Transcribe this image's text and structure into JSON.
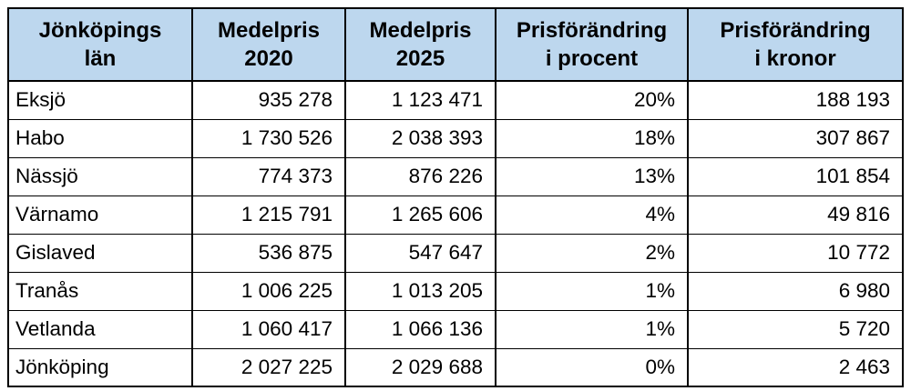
{
  "colors": {
    "header_bg": "#BDD7EE",
    "border": "#000000",
    "text": "#000000",
    "page_bg": "#FFFFFF"
  },
  "table": {
    "columns": [
      {
        "id": "kommun",
        "label_lines": [
          "Jönköpings",
          "län"
        ],
        "align": "left"
      },
      {
        "id": "medelpris2020",
        "label_lines": [
          "Medelpris",
          "2020"
        ],
        "align": "right"
      },
      {
        "id": "medelpris2025",
        "label_lines": [
          "Medelpris",
          "2025"
        ],
        "align": "right"
      },
      {
        "id": "forandring_procent",
        "label_lines": [
          "Prisförändring",
          "i procent"
        ],
        "align": "right"
      },
      {
        "id": "forandring_kronor",
        "label_lines": [
          "Prisförändring",
          "i kronor"
        ],
        "align": "right"
      }
    ],
    "rows": [
      {
        "kommun": "Eksjö",
        "medelpris2020": "935 278",
        "medelpris2025": "1 123 471",
        "forandring_procent": "20%",
        "forandring_kronor": "188 193"
      },
      {
        "kommun": "Habo",
        "medelpris2020": "1 730 526",
        "medelpris2025": "2 038 393",
        "forandring_procent": "18%",
        "forandring_kronor": "307 867"
      },
      {
        "kommun": "Nässjö",
        "medelpris2020": "774 373",
        "medelpris2025": "876 226",
        "forandring_procent": "13%",
        "forandring_kronor": "101 854"
      },
      {
        "kommun": "Värnamo",
        "medelpris2020": "1 215 791",
        "medelpris2025": "1 265 606",
        "forandring_procent": "4%",
        "forandring_kronor": "49 816"
      },
      {
        "kommun": "Gislaved",
        "medelpris2020": "536 875",
        "medelpris2025": "547 647",
        "forandring_procent": "2%",
        "forandring_kronor": "10 772"
      },
      {
        "kommun": "Tranås",
        "medelpris2020": "1 006 225",
        "medelpris2025": "1 013 205",
        "forandring_procent": "1%",
        "forandring_kronor": "6 980"
      },
      {
        "kommun": "Vetlanda",
        "medelpris2020": "1 060 417",
        "medelpris2025": "1 066 136",
        "forandring_procent": "1%",
        "forandring_kronor": "5 720"
      },
      {
        "kommun": "Jönköping",
        "medelpris2020": "2 027 225",
        "medelpris2025": "2 029 688",
        "forandring_procent": "0%",
        "forandring_kronor": "2 463"
      }
    ]
  },
  "chart_data": {
    "type": "table",
    "columns": [
      "Jönköpings län",
      "Medelpris 2020",
      "Medelpris 2025",
      "Prisförändring i procent",
      "Prisförändring i kronor"
    ],
    "rows": [
      [
        "Eksjö",
        935278,
        1123471,
        "20%",
        188193
      ],
      [
        "Habo",
        1730526,
        2038393,
        "18%",
        307867
      ],
      [
        "Nässjö",
        774373,
        876226,
        "13%",
        101854
      ],
      [
        "Värnamo",
        1215791,
        1265606,
        "4%",
        49816
      ],
      [
        "Gislaved",
        536875,
        547647,
        "2%",
        10772
      ],
      [
        "Tranås",
        1006225,
        1013205,
        "1%",
        6980
      ],
      [
        "Vetlanda",
        1060417,
        1066136,
        "1%",
        5720
      ],
      [
        "Jönköping",
        2027225,
        2029688,
        "0%",
        2463
      ]
    ]
  }
}
